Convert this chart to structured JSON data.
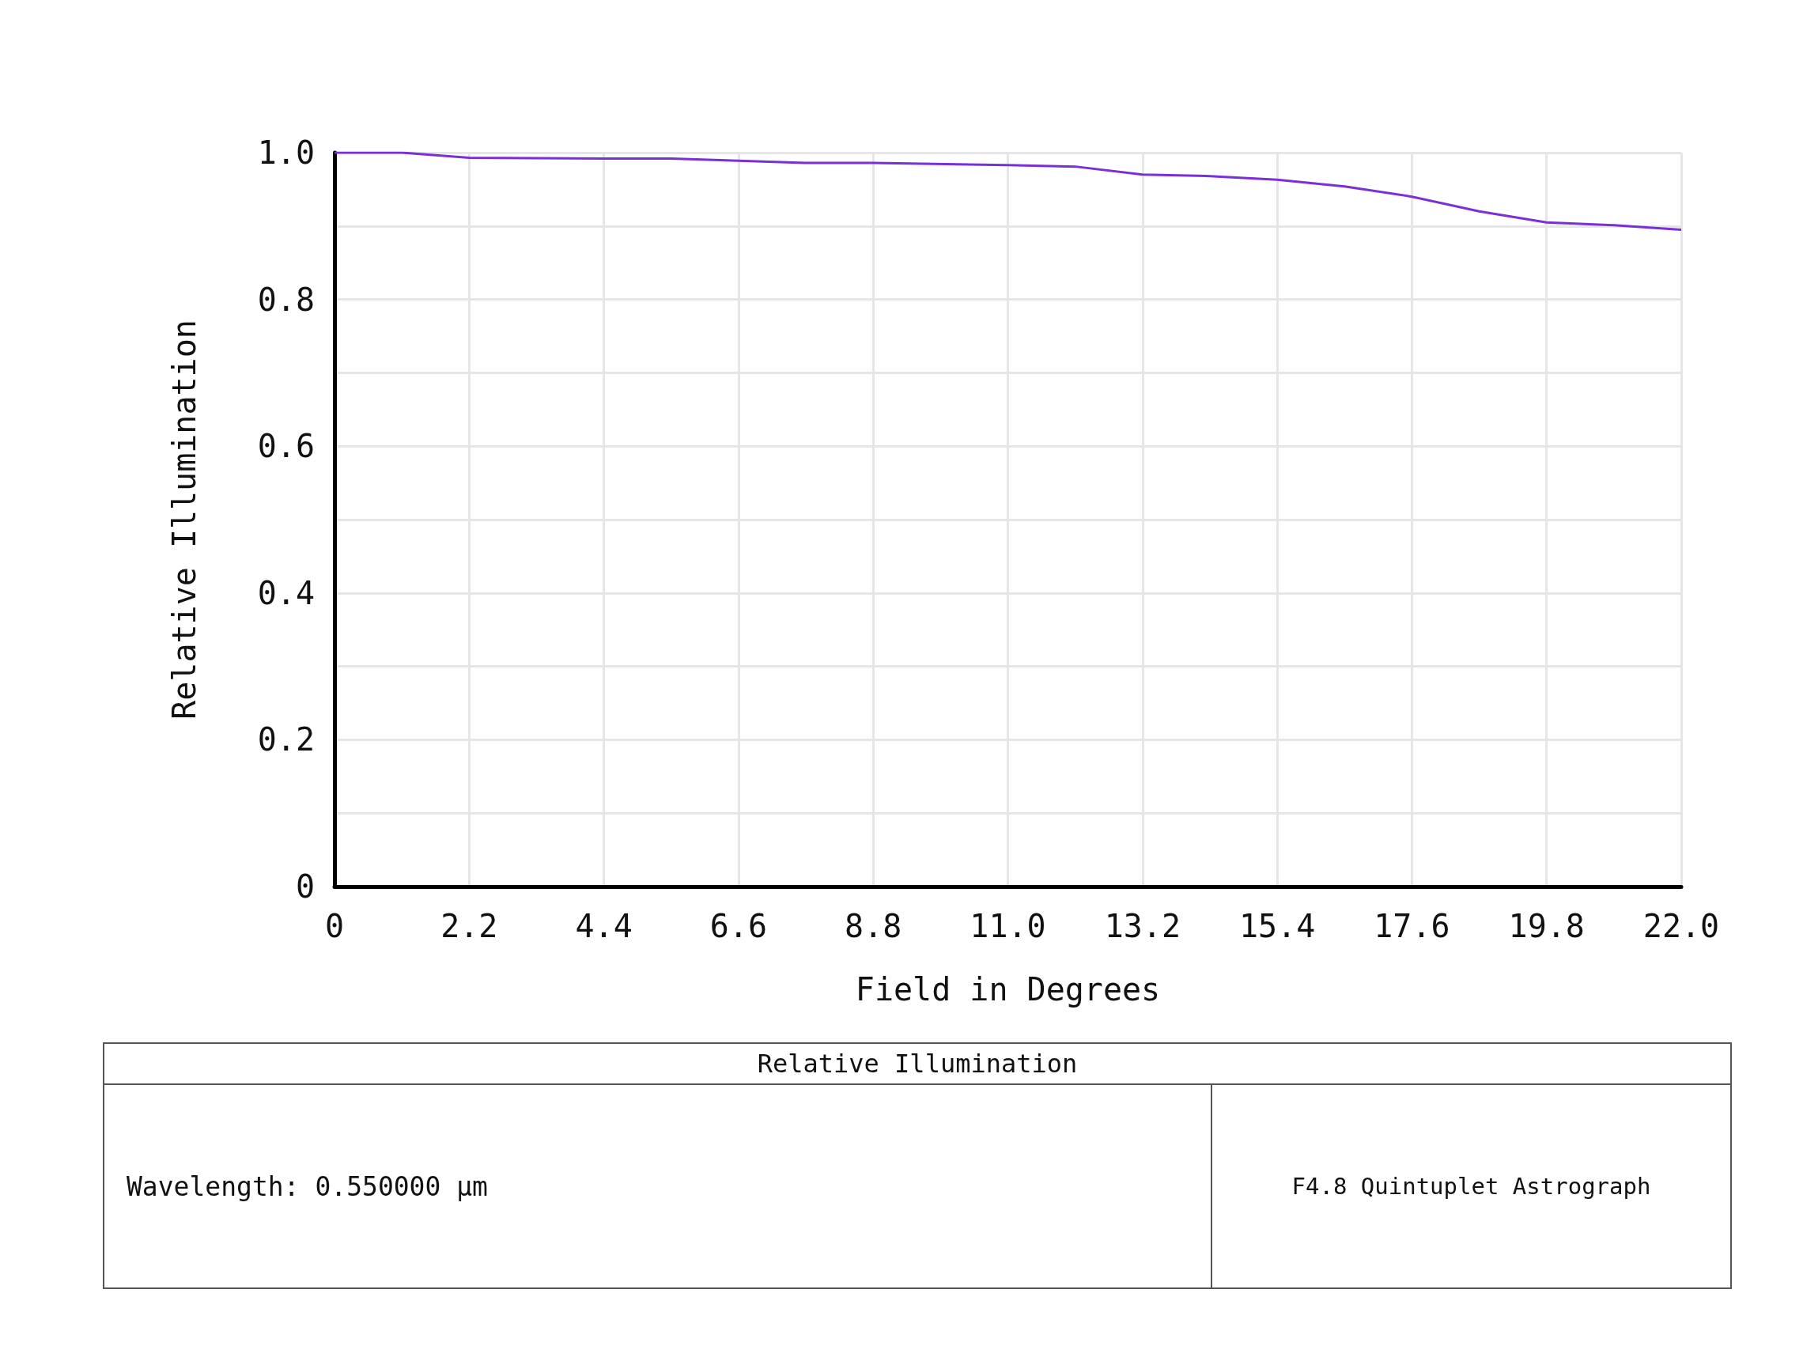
{
  "chart_data": {
    "type": "line",
    "xlabel": "Field in Degrees",
    "ylabel": "Relative Illumination",
    "x": [
      0,
      1.1,
      2.2,
      4.4,
      5.5,
      6.6,
      7.7,
      8.8,
      11.0,
      12.1,
      13.2,
      14.3,
      15.4,
      16.5,
      17.6,
      18.7,
      19.8,
      20.9,
      22.0
    ],
    "series": [
      {
        "color": "#7b2fd6",
        "values": [
          1.0,
          1.0,
          0.993,
          0.992,
          0.992,
          0.989,
          0.986,
          0.986,
          0.983,
          0.981,
          0.97,
          0.968,
          0.963,
          0.954,
          0.94,
          0.92,
          0.905,
          0.901,
          0.895
        ]
      }
    ],
    "xlim": [
      0,
      22
    ],
    "xticks": [
      0,
      2.2,
      4.4,
      6.6,
      8.8,
      {
        "value": 11,
        "label": "11.0"
      },
      13.2,
      15.4,
      17.6,
      19.8,
      {
        "value": 22,
        "label": "22.0"
      }
    ],
    "ylim": [
      0,
      1
    ],
    "yticks": [
      0,
      {
        "value": 0.1,
        "label": null
      },
      0.2,
      {
        "value": 0.3,
        "label": null
      },
      0.4,
      {
        "value": 0.5,
        "label": null
      },
      0.6,
      {
        "value": 0.7,
        "label": null
      },
      0.8,
      {
        "value": 0.9,
        "label": null
      },
      {
        "value": 1,
        "label": "1.0"
      }
    ],
    "grid": true,
    "marker": "none",
    "line_style": "solid",
    "annotations": [
      "Relative Illumination",
      "Wavelength: 0.550000 µm",
      "F4.8 Quintuplet Astrograph"
    ]
  }
}
